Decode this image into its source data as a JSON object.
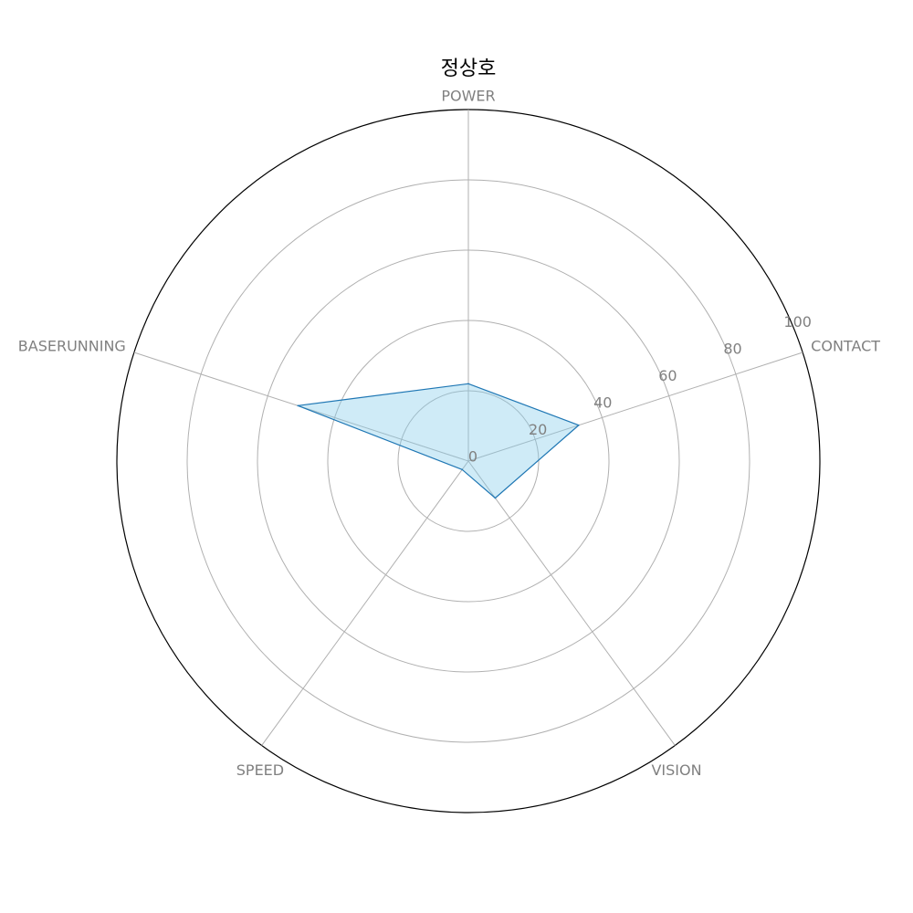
{
  "chart_data": {
    "type": "radar",
    "title": "정상호",
    "axes": [
      "POWER",
      "CONTACT",
      "VISION",
      "SPEED",
      "BASERUNNING"
    ],
    "series": [
      {
        "values": [
          22,
          33,
          13,
          3,
          51
        ]
      }
    ],
    "rlim": [
      0,
      100
    ],
    "rticks": [
      "0",
      "20",
      "40",
      "60",
      "80",
      "100"
    ],
    "grid": true,
    "colors": {
      "line": "#1f77b4",
      "fill": "#87ceeb",
      "grid": "#b0b0b0",
      "outline": "#000000",
      "label": "#808080"
    }
  }
}
